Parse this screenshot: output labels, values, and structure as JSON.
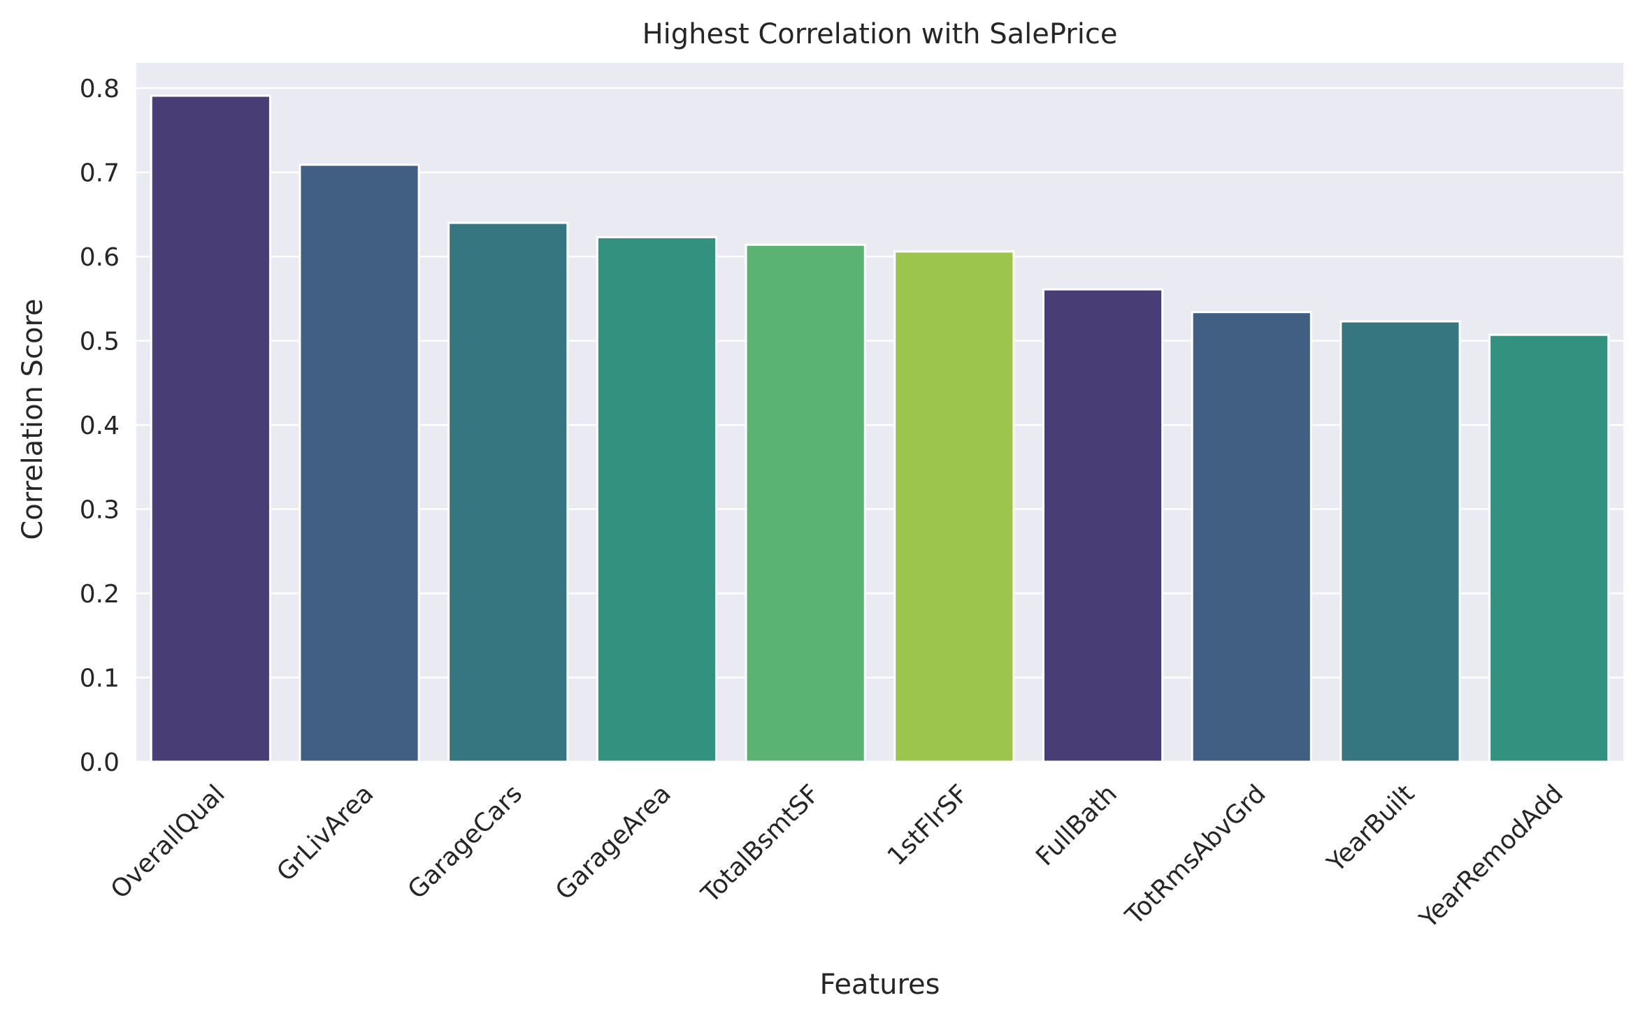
{
  "chart_data": {
    "type": "bar",
    "title": "Highest Correlation with SalePrice",
    "xlabel": "Features",
    "ylabel": "Correlation Score",
    "categories": [
      "OverallQual",
      "GrLivArea",
      "GarageCars",
      "GarageArea",
      "TotalBsmtSF",
      "1stFlrSF",
      "FullBath",
      "TotRmsAbvGrd",
      "YearBuilt",
      "YearRemodAdd"
    ],
    "values": [
      0.791,
      0.709,
      0.64,
      0.623,
      0.614,
      0.606,
      0.561,
      0.534,
      0.523,
      0.507
    ],
    "ylim": [
      0,
      0.83
    ],
    "yticks": [
      "0.0",
      "0.1",
      "0.2",
      "0.3",
      "0.4",
      "0.5",
      "0.6",
      "0.7",
      "0.8"
    ],
    "grid": true,
    "colors": [
      "#483d74",
      "#415f82",
      "#357680",
      "#33927f",
      "#5ab273",
      "#9bc54d",
      "#483d74",
      "#415f82",
      "#357680",
      "#33927f"
    ],
    "plot_background": "#eaeaf2",
    "grid_color": "#ffffff"
  }
}
